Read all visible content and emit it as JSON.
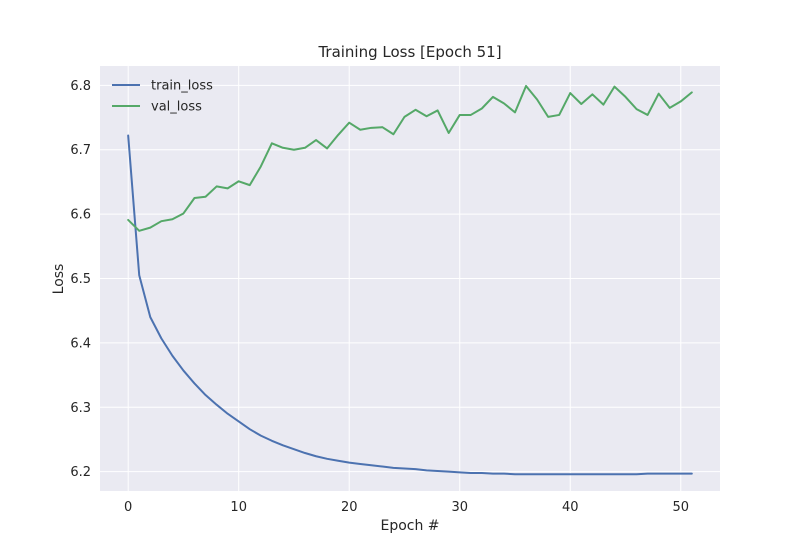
{
  "chart_data": {
    "type": "line",
    "title": "Training Loss [Epoch 51]",
    "xlabel": "Epoch #",
    "ylabel": "Loss",
    "xlim": [
      -2.55,
      53.55
    ],
    "ylim": [
      6.17,
      6.83
    ],
    "xticks": [
      0,
      10,
      20,
      30,
      40,
      50
    ],
    "yticks": [
      6.2,
      6.3,
      6.4,
      6.5,
      6.6,
      6.7,
      6.8
    ],
    "grid": true,
    "legend_position": "top-left",
    "colors": {
      "background": "#EAEAF2",
      "grid": "#FFFFFF",
      "train_loss": "#4C72B0",
      "val_loss": "#55A868"
    },
    "x": [
      0,
      1,
      2,
      3,
      4,
      5,
      6,
      7,
      8,
      9,
      10,
      11,
      12,
      13,
      14,
      15,
      16,
      17,
      18,
      19,
      20,
      21,
      22,
      23,
      24,
      25,
      26,
      27,
      28,
      29,
      30,
      31,
      32,
      33,
      34,
      35,
      36,
      37,
      38,
      39,
      40,
      41,
      42,
      43,
      44,
      45,
      46,
      47,
      48,
      49,
      50,
      51
    ],
    "series": [
      {
        "name": "train_loss",
        "values": [
          6.722,
          6.505,
          6.44,
          6.407,
          6.38,
          6.357,
          6.337,
          6.319,
          6.304,
          6.29,
          6.278,
          6.266,
          6.256,
          6.248,
          6.241,
          6.235,
          6.229,
          6.224,
          6.22,
          6.217,
          6.214,
          6.212,
          6.21,
          6.208,
          6.206,
          6.205,
          6.204,
          6.202,
          6.201,
          6.2,
          6.199,
          6.198,
          6.198,
          6.197,
          6.197,
          6.196,
          6.196,
          6.196,
          6.196,
          6.196,
          6.196,
          6.196,
          6.196,
          6.196,
          6.196,
          6.196,
          6.196,
          6.197,
          6.197,
          6.197,
          6.197,
          6.197
        ]
      },
      {
        "name": "val_loss",
        "values": [
          6.591,
          6.574,
          6.579,
          6.589,
          6.592,
          6.601,
          6.625,
          6.627,
          6.643,
          6.64,
          6.651,
          6.645,
          6.674,
          6.71,
          6.703,
          6.7,
          6.703,
          6.715,
          6.702,
          6.723,
          6.742,
          6.731,
          6.734,
          6.735,
          6.724,
          6.751,
          6.762,
          6.752,
          6.761,
          6.726,
          6.754,
          6.754,
          6.764,
          6.782,
          6.772,
          6.758,
          6.799,
          6.778,
          6.751,
          6.754,
          6.788,
          6.771,
          6.786,
          6.77,
          6.798,
          6.782,
          6.763,
          6.754,
          6.787,
          6.765,
          6.775,
          6.789
        ]
      }
    ]
  }
}
